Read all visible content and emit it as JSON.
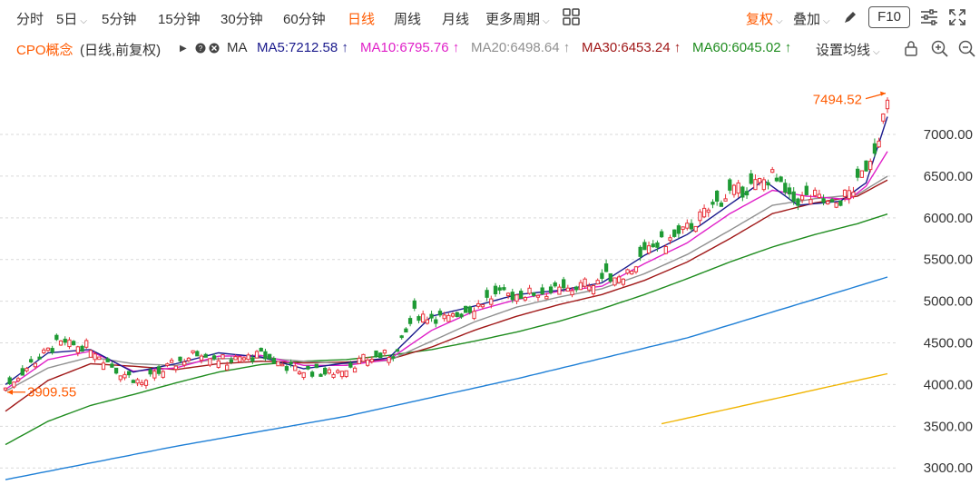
{
  "toolbar": {
    "periods": [
      "分时",
      "5日",
      "5分钟",
      "15分钟",
      "30分钟",
      "60分钟",
      "日线",
      "周线",
      "月线",
      "更多周期"
    ],
    "active_period": "日线",
    "adjust_label": "复权",
    "overlay_label": "叠加",
    "f10_label": "F10",
    "icons": [
      "grid-icon",
      "chevron-down-icon",
      "pen-icon",
      "settings-sliders-icon",
      "fullscreen-icon"
    ]
  },
  "legend": {
    "name": "CPO概念",
    "mode": "(日线,前复权)",
    "ma_label": "MA",
    "ma": [
      {
        "label": "MA5:7212.58",
        "arrow": "↑",
        "color": "#1a1a8c"
      },
      {
        "label": "MA10:6795.76",
        "arrow": "↑",
        "color": "#e020c8"
      },
      {
        "label": "MA20:6498.64",
        "arrow": "↑",
        "color": "#909090"
      },
      {
        "label": "MA30:6453.24",
        "arrow": "↑",
        "color": "#a01818"
      },
      {
        "label": "MA60:6045.02",
        "arrow": "↑",
        "color": "#1f8c1f"
      }
    ],
    "settings_label": "设置均线",
    "icons": [
      "lock-icon",
      "zoom-in-icon",
      "zoom-out-icon"
    ]
  },
  "chart_data": {
    "type": "candlestick",
    "y_ticks": [
      "7000.00",
      "6500.00",
      "6000.00",
      "5500.00",
      "5000.00",
      "4500.00",
      "4000.00",
      "3500.00",
      "3000.00"
    ],
    "y_tick_values": [
      7000,
      6500,
      6000,
      5500,
      5000,
      4500,
      4000,
      3500,
      3000
    ],
    "ylim": [
      2850,
      7850
    ],
    "max_label": "7494.52",
    "max_value": 7494.52,
    "min_label": "3909.55",
    "min_value": 3909.55,
    "up_color": "#e8323a",
    "down_color": "#1f9a34",
    "anchors": {
      "close": [
        [
          0,
          3960
        ],
        [
          6,
          4250
        ],
        [
          12,
          4480
        ],
        [
          20,
          4460
        ],
        [
          26,
          4180
        ],
        [
          32,
          4020
        ],
        [
          40,
          4260
        ],
        [
          46,
          4400
        ],
        [
          52,
          4280
        ],
        [
          60,
          4350
        ],
        [
          68,
          4180
        ],
        [
          76,
          4130
        ],
        [
          84,
          4300
        ],
        [
          92,
          4380
        ],
        [
          96,
          4850
        ],
        [
          104,
          4780
        ],
        [
          114,
          5050
        ],
        [
          124,
          5100
        ],
        [
          132,
          5130
        ],
        [
          138,
          5250
        ],
        [
          146,
          5350
        ],
        [
          152,
          5650
        ],
        [
          158,
          5780
        ],
        [
          164,
          6050
        ],
        [
          170,
          6300
        ],
        [
          174,
          6350
        ],
        [
          180,
          6500
        ],
        [
          184,
          6200
        ],
        [
          190,
          6250
        ],
        [
          194,
          6130
        ],
        [
          200,
          6400
        ],
        [
          204,
          6850
        ],
        [
          206,
          7200
        ],
        [
          207,
          7350
        ]
      ],
      "ma5": [
        [
          0,
          4000
        ],
        [
          10,
          4380
        ],
        [
          20,
          4420
        ],
        [
          30,
          4150
        ],
        [
          40,
          4250
        ],
        [
          50,
          4380
        ],
        [
          60,
          4330
        ],
        [
          70,
          4190
        ],
        [
          80,
          4260
        ],
        [
          90,
          4320
        ],
        [
          100,
          4820
        ],
        [
          110,
          4940
        ],
        [
          120,
          5080
        ],
        [
          130,
          5130
        ],
        [
          140,
          5220
        ],
        [
          150,
          5550
        ],
        [
          160,
          5800
        ],
        [
          170,
          6160
        ],
        [
          178,
          6450
        ],
        [
          186,
          6150
        ],
        [
          196,
          6200
        ],
        [
          202,
          6420
        ],
        [
          207,
          7212.58
        ]
      ],
      "ma10": [
        [
          0,
          3940
        ],
        [
          10,
          4300
        ],
        [
          20,
          4400
        ],
        [
          30,
          4160
        ],
        [
          40,
          4200
        ],
        [
          50,
          4340
        ],
        [
          60,
          4350
        ],
        [
          70,
          4230
        ],
        [
          80,
          4230
        ],
        [
          90,
          4300
        ],
        [
          100,
          4650
        ],
        [
          110,
          4880
        ],
        [
          120,
          5020
        ],
        [
          130,
          5120
        ],
        [
          140,
          5180
        ],
        [
          150,
          5450
        ],
        [
          160,
          5700
        ],
        [
          170,
          6050
        ],
        [
          180,
          6330
        ],
        [
          188,
          6260
        ],
        [
          198,
          6220
        ],
        [
          202,
          6380
        ],
        [
          207,
          6795.76
        ]
      ],
      "ma20": [
        [
          0,
          3920
        ],
        [
          10,
          4200
        ],
        [
          20,
          4330
        ],
        [
          30,
          4250
        ],
        [
          40,
          4230
        ],
        [
          50,
          4310
        ],
        [
          60,
          4320
        ],
        [
          70,
          4280
        ],
        [
          80,
          4250
        ],
        [
          90,
          4290
        ],
        [
          100,
          4520
        ],
        [
          110,
          4750
        ],
        [
          120,
          4930
        ],
        [
          130,
          5050
        ],
        [
          140,
          5150
        ],
        [
          150,
          5330
        ],
        [
          160,
          5560
        ],
        [
          170,
          5850
        ],
        [
          180,
          6150
        ],
        [
          190,
          6230
        ],
        [
          200,
          6280
        ],
        [
          207,
          6498.64
        ]
      ],
      "ma30": [
        [
          0,
          3680
        ],
        [
          10,
          4050
        ],
        [
          20,
          4250
        ],
        [
          30,
          4220
        ],
        [
          40,
          4180
        ],
        [
          50,
          4250
        ],
        [
          60,
          4280
        ],
        [
          70,
          4260
        ],
        [
          80,
          4270
        ],
        [
          90,
          4300
        ],
        [
          100,
          4450
        ],
        [
          110,
          4650
        ],
        [
          120,
          4820
        ],
        [
          130,
          4960
        ],
        [
          140,
          5080
        ],
        [
          150,
          5250
        ],
        [
          160,
          5470
        ],
        [
          170,
          5750
        ],
        [
          180,
          6050
        ],
        [
          190,
          6180
        ],
        [
          200,
          6260
        ],
        [
          207,
          6453.24
        ]
      ],
      "ma60": [
        [
          0,
          3280
        ],
        [
          10,
          3560
        ],
        [
          20,
          3750
        ],
        [
          30,
          3880
        ],
        [
          40,
          4020
        ],
        [
          50,
          4150
        ],
        [
          60,
          4240
        ],
        [
          70,
          4280
        ],
        [
          80,
          4300
        ],
        [
          90,
          4350
        ],
        [
          100,
          4420
        ],
        [
          110,
          4520
        ],
        [
          120,
          4630
        ],
        [
          130,
          4760
        ],
        [
          140,
          4910
        ],
        [
          150,
          5080
        ],
        [
          160,
          5270
        ],
        [
          170,
          5470
        ],
        [
          180,
          5650
        ],
        [
          190,
          5800
        ],
        [
          200,
          5930
        ],
        [
          207,
          6045.02
        ]
      ],
      "ma120": [
        [
          0,
          2860
        ],
        [
          40,
          3260
        ],
        [
          80,
          3620
        ],
        [
          120,
          4070
        ],
        [
          160,
          4560
        ],
        [
          200,
          5180
        ],
        [
          207,
          5290
        ]
      ],
      "ma250": [
        [
          154,
          3530
        ],
        [
          207,
          4130
        ]
      ]
    },
    "n_candles": 208,
    "line_colors": {
      "ma5": "#1a1a8c",
      "ma10": "#e020c8",
      "ma20": "#909090",
      "ma30": "#a01818",
      "ma60": "#1f8c1f",
      "ma120": "#1e7fd6",
      "ma250": "#f0b400"
    },
    "grid": true
  }
}
